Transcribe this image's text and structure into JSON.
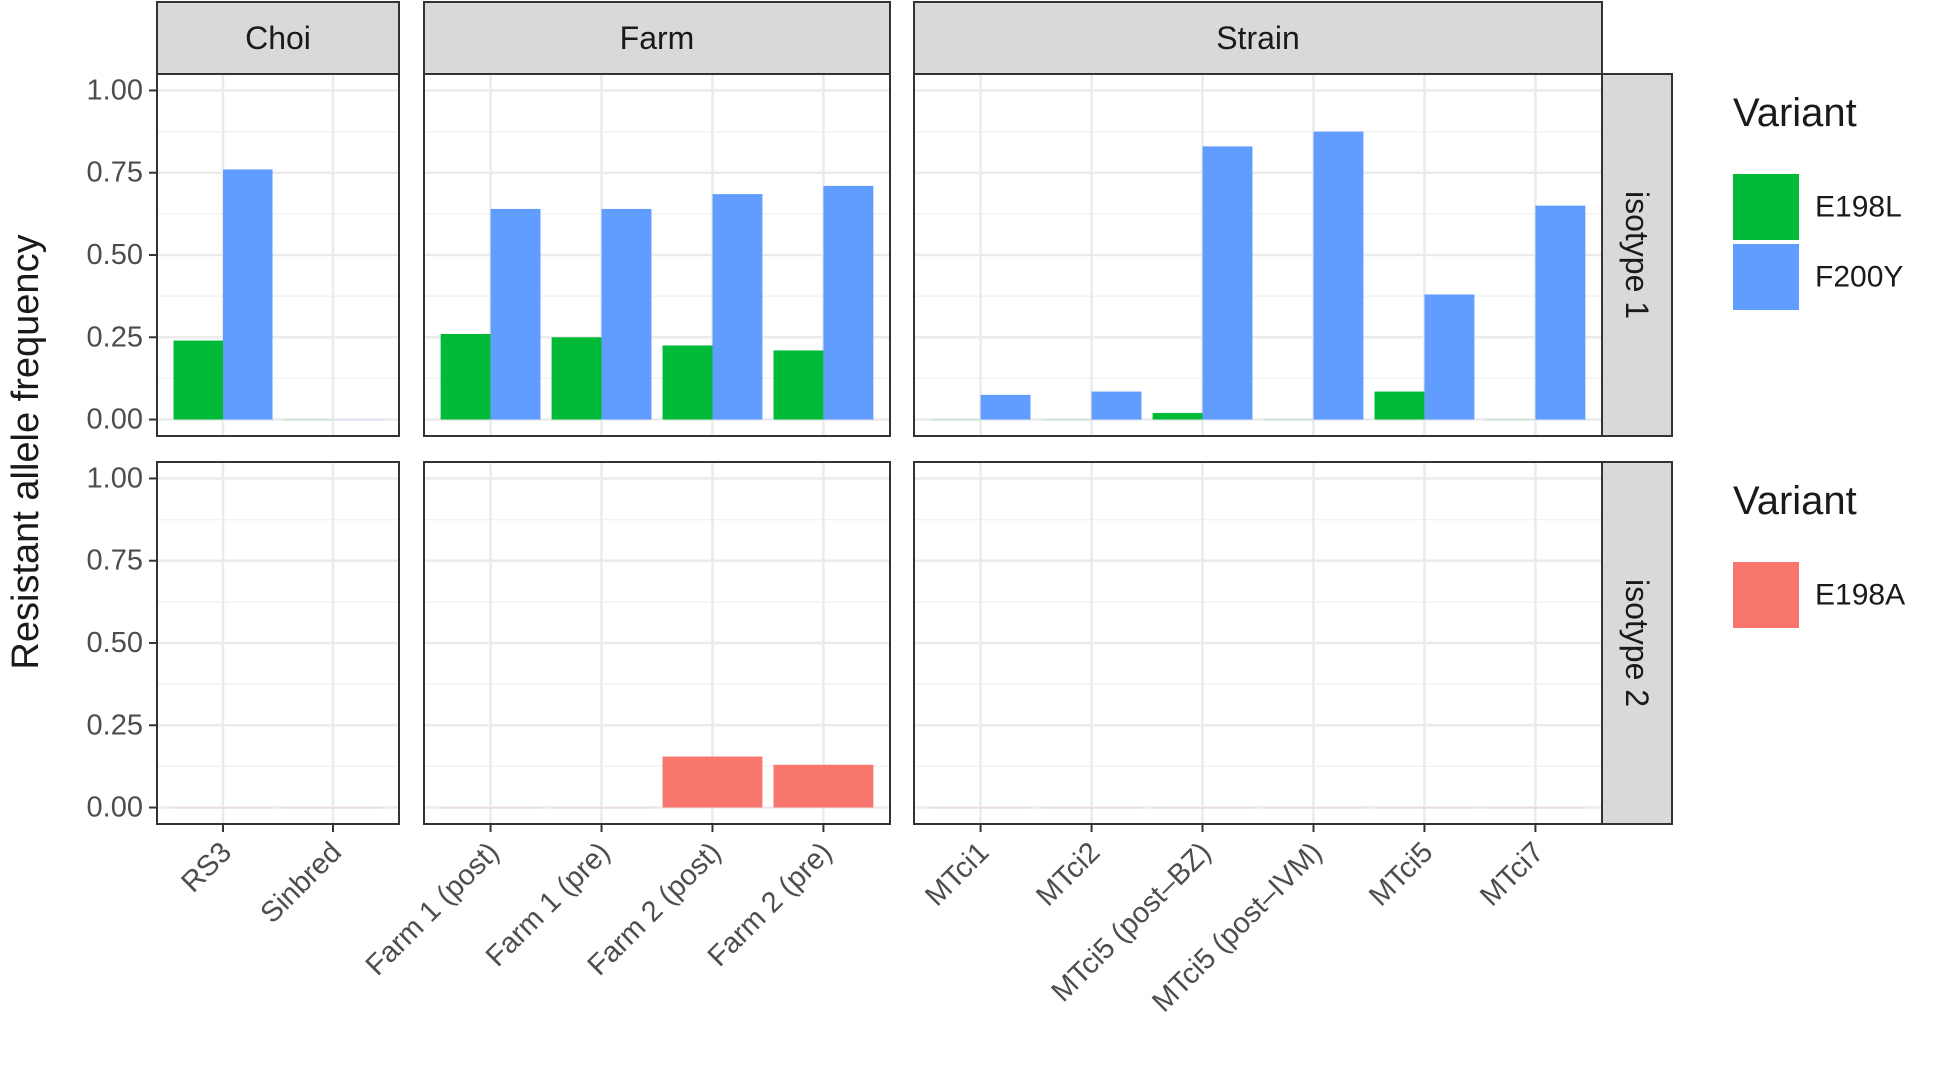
{
  "chart_data": {
    "type": "bar",
    "ylabel": "Resistant allele frequency",
    "xlabel": "",
    "ylim": [
      0,
      1
    ],
    "y_ticks": [
      "0.00",
      "0.25",
      "0.50",
      "0.75",
      "1.00"
    ],
    "column_facets": [
      {
        "name": "Choi",
        "categories": [
          "RS3",
          "Sinbred"
        ]
      },
      {
        "name": "Farm",
        "categories": [
          "Farm 1 (post)",
          "Farm 1 (pre)",
          "Farm 2 (post)",
          "Farm 2 (pre)"
        ]
      },
      {
        "name": "Strain",
        "categories": [
          "MTci1",
          "MTci2",
          "MTci5 (post–BZ)",
          "MTci5 (post–IVM)",
          "MTci5",
          "MTci7"
        ]
      }
    ],
    "row_facets": [
      {
        "name": "isotype 1",
        "legend_title": "Variant",
        "series": [
          {
            "name": "E198L",
            "color": "#00BA38",
            "values": [
              [
                0.24,
                0.0
              ],
              [
                0.26,
                0.25,
                0.225,
                0.21
              ],
              [
                0.0,
                0.0,
                0.02,
                0.0,
                0.085,
                0.0
              ]
            ]
          },
          {
            "name": "F200Y",
            "color": "#619CFF",
            "values": [
              [
                0.76,
                0.0
              ],
              [
                0.64,
                0.64,
                0.685,
                0.71
              ],
              [
                0.075,
                0.085,
                0.83,
                0.875,
                0.38,
                0.65
              ]
            ]
          }
        ]
      },
      {
        "name": "isotype 2",
        "legend_title": "Variant",
        "series": [
          {
            "name": "E198A",
            "color": "#F8766D",
            "values": [
              [
                0.0,
                0.0
              ],
              [
                0.0,
                0.0,
                0.155,
                0.13
              ],
              [
                0.0,
                0.0,
                0.0,
                0.0,
                0.0,
                0.0
              ]
            ]
          }
        ]
      }
    ],
    "grid": true,
    "legend_position": "right"
  }
}
